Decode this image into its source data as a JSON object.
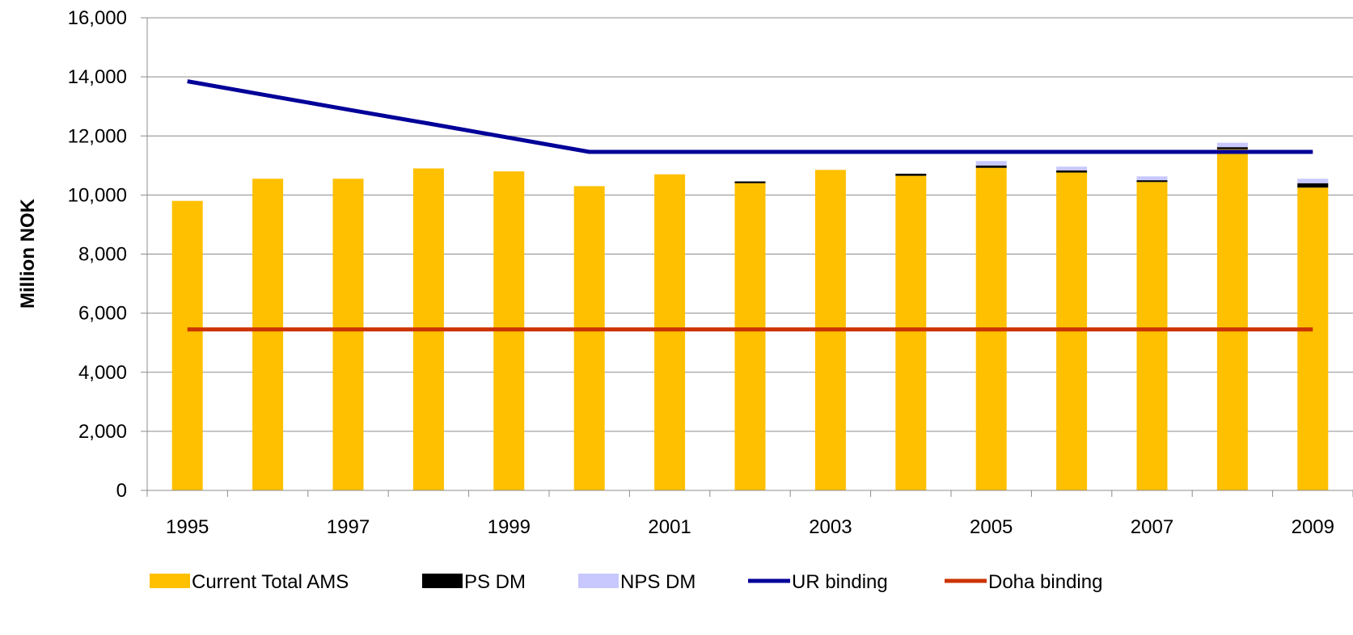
{
  "chart_data": {
    "type": "bar",
    "stacked": true,
    "ylabel": "Million NOK",
    "xlabel": "",
    "ylim": [
      0,
      16000
    ],
    "y_ticks": [
      "0",
      "2,000",
      "4,000",
      "6,000",
      "8,000",
      "10,000",
      "12,000",
      "14,000",
      "16,000"
    ],
    "y_tick_values": [
      0,
      2000,
      4000,
      6000,
      8000,
      10000,
      12000,
      14000,
      16000
    ],
    "categories": [
      "1995",
      "1996",
      "1997",
      "1998",
      "1999",
      "2000",
      "2001",
      "2002",
      "2003",
      "2004",
      "2005",
      "2006",
      "2007",
      "2008",
      "2009"
    ],
    "x_tick_labels": [
      "1995",
      "",
      "1997",
      "",
      "1999",
      "",
      "2001",
      "",
      "2003",
      "",
      "2005",
      "",
      "2007",
      "",
      "2009"
    ],
    "grid": "horizontal",
    "legend_position": "bottom",
    "series": [
      {
        "name": "Current Total AMS",
        "kind": "bar",
        "color": "#FFC000",
        "values": [
          9800,
          10550,
          10550,
          10900,
          10800,
          10300,
          10700,
          10400,
          10850,
          10650,
          10920,
          10760,
          10440,
          11550,
          10250
        ]
      },
      {
        "name": "PS DM",
        "kind": "bar",
        "color": "#000000",
        "values": [
          0,
          0,
          0,
          0,
          0,
          0,
          0,
          60,
          0,
          70,
          80,
          70,
          60,
          70,
          150
        ]
      },
      {
        "name": "NPS DM",
        "kind": "bar",
        "color": "#C8C8FF",
        "values": [
          0,
          0,
          0,
          0,
          0,
          0,
          0,
          0,
          0,
          0,
          150,
          130,
          130,
          150,
          150
        ]
      },
      {
        "name": "UR binding",
        "kind": "line",
        "color": "#000099",
        "values": [
          13850,
          13370,
          12890,
          12420,
          11940,
          11460,
          11460,
          11460,
          11460,
          11460,
          11460,
          11460,
          11460,
          11460,
          11460
        ]
      },
      {
        "name": "Doha binding",
        "kind": "line",
        "color": "#CC3300",
        "values": [
          5450,
          5450,
          5450,
          5450,
          5450,
          5450,
          5450,
          5450,
          5450,
          5450,
          5450,
          5450,
          5450,
          5450,
          5450
        ]
      }
    ]
  }
}
